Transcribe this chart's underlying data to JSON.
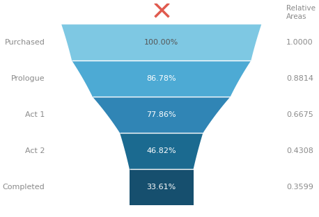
{
  "stages": [
    "Purchased",
    "Prologue",
    "Act 1",
    "Act 2",
    "Completed"
  ],
  "percentages": [
    "100.00%",
    "86.78%",
    "77.86%",
    "46.82%",
    "33.61%"
  ],
  "relative_areas": [
    "1.0000",
    "0.8814",
    "0.6675",
    "0.4308",
    "0.3599"
  ],
  "values": [
    1.0,
    0.8814,
    0.6675,
    0.4308,
    0.3599
  ],
  "colors": [
    "#7EC8E3",
    "#4DAAD4",
    "#3085B5",
    "#1B6A90",
    "#164F6E"
  ],
  "bg_color": "#FFFFFF",
  "label_color": "#8A8A8A",
  "pct_color_white": "#FFFFFF",
  "pct_color_dark": "#555555",
  "title_right": "Relative\nAreas",
  "cross_color": "#E05A4E",
  "fig_width": 4.58,
  "fig_height": 3.12,
  "dpi": 100
}
